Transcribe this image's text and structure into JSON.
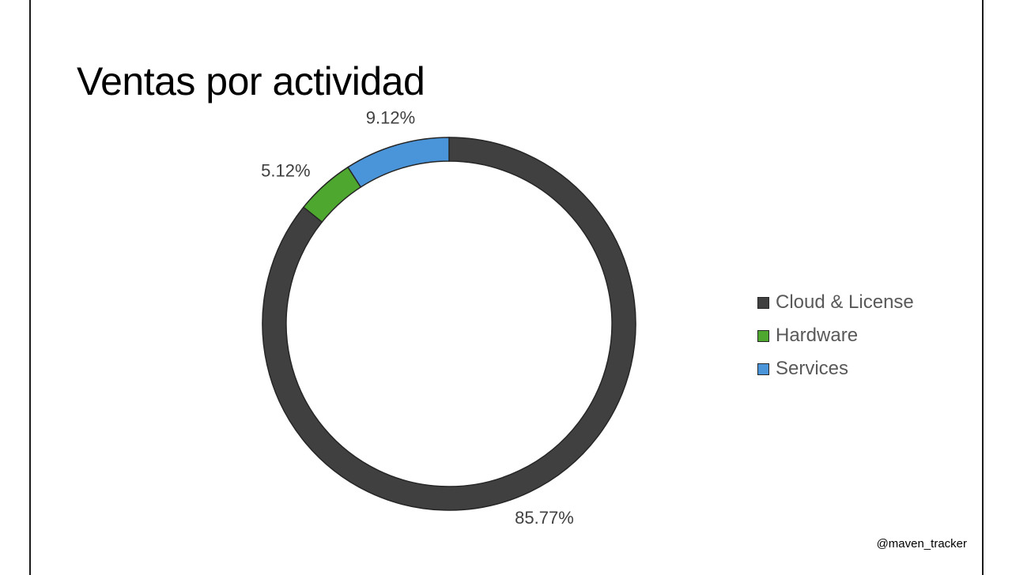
{
  "slide": {
    "title": "Ventas por actividad",
    "watermark": "@maven_tracker"
  },
  "chart_data": {
    "type": "pie",
    "variant": "donut",
    "title": "Ventas por actividad",
    "categories": [
      "Cloud & License",
      "Hardware",
      "Services"
    ],
    "values": [
      85.77,
      5.12,
      9.12
    ],
    "value_labels": [
      "85.77%",
      "5.12%",
      "9.12%"
    ],
    "colors": [
      "#404040",
      "#4ea72e",
      "#4a94d9"
    ],
    "stroke_color": "#262626",
    "start_angle": "top (12 o'clock), clockwise",
    "legend_position": "right"
  },
  "legend": {
    "items": [
      {
        "label": "Cloud & License",
        "color": "#404040"
      },
      {
        "label": "Hardware",
        "color": "#4ea72e"
      },
      {
        "label": "Services",
        "color": "#4a94d9"
      }
    ]
  }
}
